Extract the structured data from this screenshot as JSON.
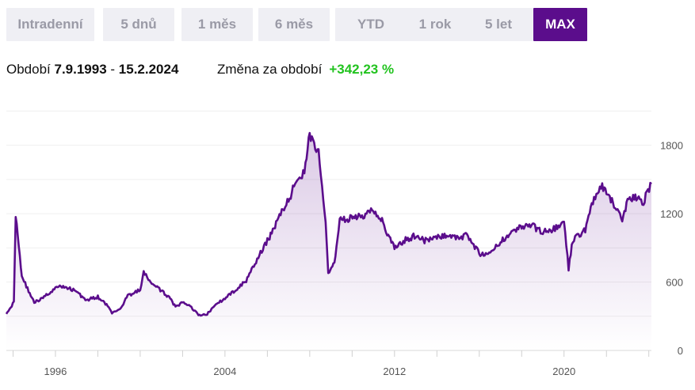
{
  "tabs": [
    {
      "label": "Intradenní",
      "active": false
    },
    {
      "label": "5 dnů",
      "active": false
    },
    {
      "label": "1 měs",
      "active": false
    },
    {
      "label": "6 měs",
      "active": false
    },
    {
      "label": "YTD",
      "active": false
    },
    {
      "label": "1 rok",
      "active": false
    },
    {
      "label": "5 let",
      "active": false
    },
    {
      "label": "MAX",
      "active": true
    }
  ],
  "summary": {
    "period_label": "Období",
    "start_date": "7.9.1993",
    "separator": " - ",
    "end_date": "15.2.2024",
    "change_label": "Změna za období",
    "change_value": "+342,23 %"
  },
  "colors": {
    "line": "#5b0d8c",
    "change_positive": "#22c31f",
    "tab_active": "#5b0d8c"
  },
  "chart_data": {
    "type": "area",
    "xlabel": "",
    "ylabel": "",
    "ylim": [
      0,
      2200
    ],
    "xlim": [
      "1993-09-07",
      "2024-02-15"
    ],
    "y_ticks": [
      0,
      600,
      1200,
      1800
    ],
    "x_ticks": [
      "1996",
      "2004",
      "2012",
      "2020"
    ],
    "grid": true,
    "series": [
      {
        "x": [
          "1993-09-07",
          "1994-01-15",
          "1994-02-15",
          "1994-06-01",
          "1995-01-01",
          "1995-06-01",
          "1996-01-01",
          "1996-06-01",
          "1997-01-01",
          "1997-06-01",
          "1998-01-01",
          "1998-06-01",
          "1998-09-01",
          "1999-01-01",
          "1999-06-01",
          "2000-01-01",
          "2000-03-01",
          "2000-07-01",
          "2001-01-01",
          "2001-06-01",
          "2001-09-01",
          "2002-01-01",
          "2002-06-01",
          "2002-10-01",
          "2003-03-01",
          "2003-09-01",
          "2004-01-01",
          "2004-06-01",
          "2005-01-01",
          "2005-06-01",
          "2006-01-01",
          "2006-06-01",
          "2007-01-01",
          "2007-06-01",
          "2007-10-01",
          "2008-01-01",
          "2008-06-01",
          "2008-10-01",
          "2008-11-15",
          "2009-03-01",
          "2009-06-01",
          "2009-12-01",
          "2010-06-01",
          "2011-01-01",
          "2011-06-01",
          "2011-09-15",
          "2012-01-01",
          "2012-06-01",
          "2013-01-01",
          "2013-06-01",
          "2014-01-01",
          "2014-06-01",
          "2015-01-01",
          "2015-06-01",
          "2016-01-01",
          "2016-06-01",
          "2017-01-01",
          "2017-06-01",
          "2018-01-01",
          "2018-06-01",
          "2019-01-01",
          "2019-06-01",
          "2020-01-01",
          "2020-03-20",
          "2020-06-01",
          "2021-01-01",
          "2021-06-01",
          "2021-10-01",
          "2022-01-01",
          "2022-06-01",
          "2022-10-01",
          "2023-01-01",
          "2023-06-01",
          "2023-10-01",
          "2024-02-15"
        ],
        "y": [
          330,
          420,
          1200,
          650,
          420,
          460,
          550,
          560,
          520,
          440,
          470,
          400,
          330,
          350,
          480,
          530,
          680,
          600,
          520,
          460,
          380,
          420,
          380,
          310,
          320,
          420,
          450,
          520,
          610,
          760,
          960,
          1120,
          1320,
          1500,
          1580,
          1900,
          1720,
          1100,
          680,
          760,
          1150,
          1160,
          1170,
          1240,
          1150,
          1000,
          900,
          960,
          1010,
          960,
          990,
          1010,
          980,
          1020,
          850,
          830,
          950,
          1030,
          1080,
          1100,
          1040,
          1060,
          1110,
          720,
          970,
          1060,
          1340,
          1440,
          1380,
          1260,
          1140,
          1330,
          1340,
          1310,
          1460
        ]
      }
    ]
  }
}
